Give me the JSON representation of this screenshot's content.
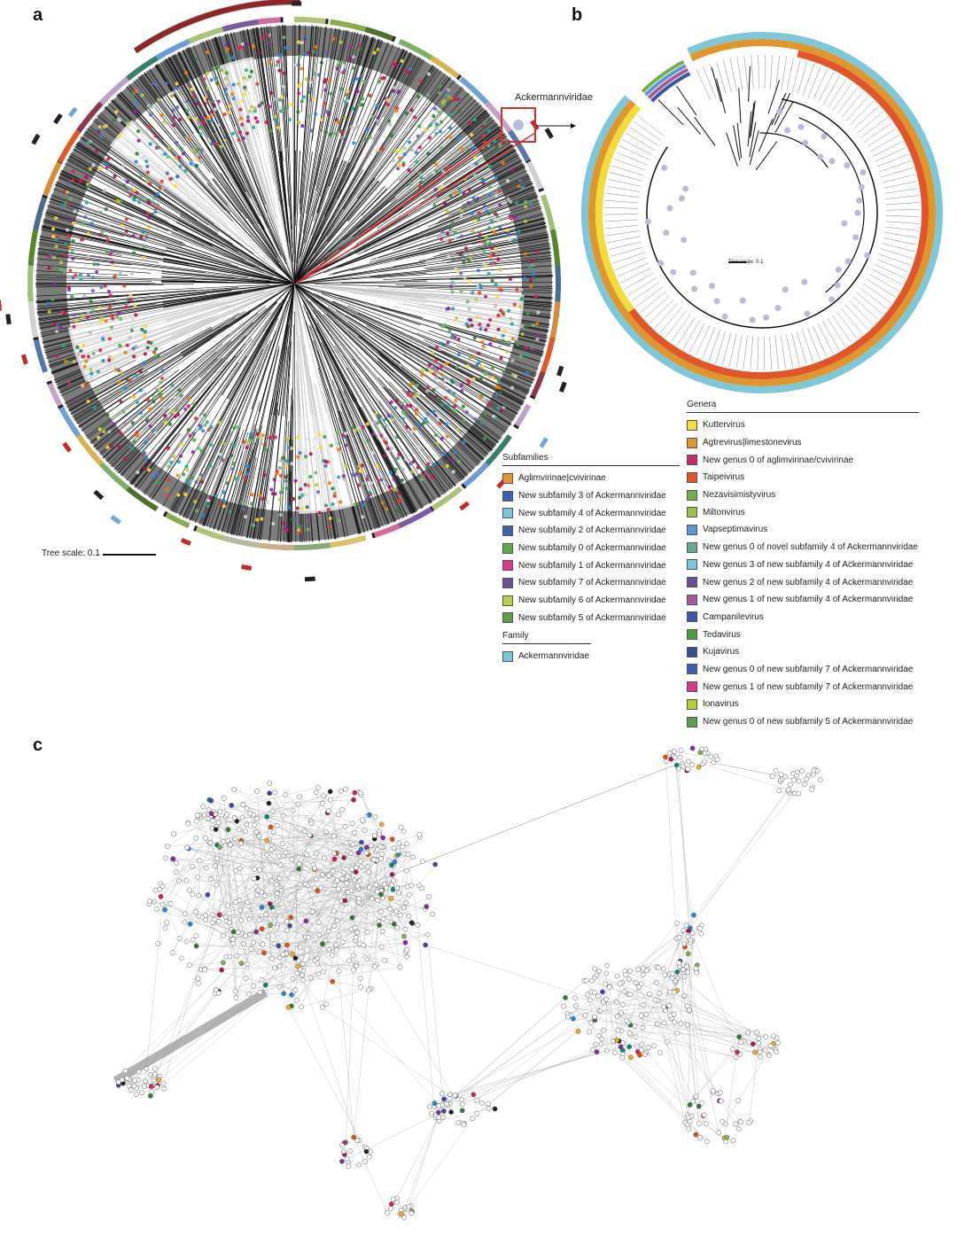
{
  "panels": {
    "a": "a",
    "b": "b",
    "c": "c"
  },
  "panel_a": {
    "tree_scale_label": "Tree scale: 0.1",
    "callout_label": "Ackermannviridae",
    "ring_colors": [
      "#b0c27a",
      "#8aaa4e",
      "#4f6f2e",
      "#7fb069",
      "#d8b450",
      "#6fa0d8",
      "#c7a0c8",
      "#5577b0",
      "#d0d0d0",
      "#9ec17a",
      "#59852f",
      "#4a6b8c",
      "#d98b3c",
      "#df5a2a",
      "#8b3a4e",
      "#bfa0c8",
      "#3a7d6d",
      "#6d9bd8",
      "#a9c27a",
      "#7a5aa0",
      "#d56a9c",
      "#d9c26a",
      "#8aa87a",
      "#c9b08a",
      "#b8b8a0"
    ],
    "dot_colors": [
      "#2e7d32",
      "#43a047",
      "#66bb6a",
      "#1e88e5",
      "#d81b60",
      "#e53935",
      "#f57c00",
      "#8e24aa",
      "#c0ca33",
      "#bdbdbd",
      "#cfd8dc",
      "#5c6bc0",
      "#26a69a",
      "#fdd835",
      "#ad1457"
    ]
  },
  "panel_b": {
    "tree_scale_label": "Tree scale: 0.1",
    "outer_ring_color": "#7fc6d8",
    "middle_ring_color": "#e0962e",
    "inner_ring_color": "#f0dc3c",
    "node_color": "#b9bcd9"
  },
  "legend_subfamilies": {
    "title": "Subfamilies",
    "items": [
      {
        "label": "Aglimvirinae|cvivirinae",
        "color": "#e0962e"
      },
      {
        "label": "New subfamily 3 of Ackermannviridae",
        "color": "#3d5fb0"
      },
      {
        "label": "New subfamily 4 of Ackermannviridae",
        "color": "#7fc6d8"
      },
      {
        "label": "New subfamily 2 of Ackermannviridae",
        "color": "#3a63a8"
      },
      {
        "label": "New subfamily 0 of Ackermannviridae",
        "color": "#5ea84a"
      },
      {
        "label": "New subfamily 1 of Ackermannviridae",
        "color": "#d63a8e"
      },
      {
        "label": "New subfamily 7 of Ackermannviridae",
        "color": "#6f4e9c"
      },
      {
        "label": "New subfamily 6 of Ackermannviridae",
        "color": "#b6d24a"
      },
      {
        "label": "New subfamily 5 of Ackermannviridae",
        "color": "#5e9e48"
      }
    ]
  },
  "legend_family": {
    "title": "Family",
    "items": [
      {
        "label": "Ackermannviridae",
        "color": "#7fc6d8"
      }
    ]
  },
  "legend_genera": {
    "title": "Genera",
    "items": [
      {
        "label": "Kuttervirus",
        "color": "#f0dc3c"
      },
      {
        "label": "Agtrevirus|limestonevirus",
        "color": "#e0962e"
      },
      {
        "label": "New genus 0 of aglimvirinae/cvivirinae",
        "color": "#c62a6e"
      },
      {
        "label": "Taipeivirus",
        "color": "#e0562a"
      },
      {
        "label": "Nezavisimistyvirus",
        "color": "#6fb04a"
      },
      {
        "label": "Miltonvirus",
        "color": "#9cc24e"
      },
      {
        "label": "Vapseptimavirus",
        "color": "#5e96d0"
      },
      {
        "label": "New genus 0 of novel subfamily 4 of Ackermannviridae",
        "color": "#6aa893"
      },
      {
        "label": "New genus 3 of new subfamily 4 of Ackermannviridae",
        "color": "#7fc6d8"
      },
      {
        "label": "New genus 2 of new subfamily 4 of Ackermannviridae",
        "color": "#6a4e9c"
      },
      {
        "label": "New genus 1 of new subfamily 4 of Ackermannviridae",
        "color": "#a35a9c"
      },
      {
        "label": "Campanilevirus",
        "color": "#3a55a8"
      },
      {
        "label": "Tedavirus",
        "color": "#4e9e3e"
      },
      {
        "label": "Kujavirus",
        "color": "#34508e"
      },
      {
        "label": "New genus 0 of new subfamily 7 of Ackermannviridae",
        "color": "#3d60b0"
      },
      {
        "label": "New genus 1 of new subfamily 7 of Ackermannviridae",
        "color": "#d6388a"
      },
      {
        "label": "Ionavirus",
        "color": "#b4cc3a"
      },
      {
        "label": "New genus 0 of new subfamily 5 of Ackermannviridae",
        "color": "#5e9e50"
      }
    ]
  },
  "panel_c": {
    "edge_color": "#9e9e9e",
    "node_fill": "#ffffff",
    "node_stroke": "#555555",
    "cluster_colors": [
      "#2e7d32",
      "#1e88e5",
      "#d81b60",
      "#e65100",
      "#8e24aa",
      "#7cb342",
      "#f9a825",
      "#3949ab",
      "#212121",
      "#ad1457",
      "#00897b"
    ]
  }
}
